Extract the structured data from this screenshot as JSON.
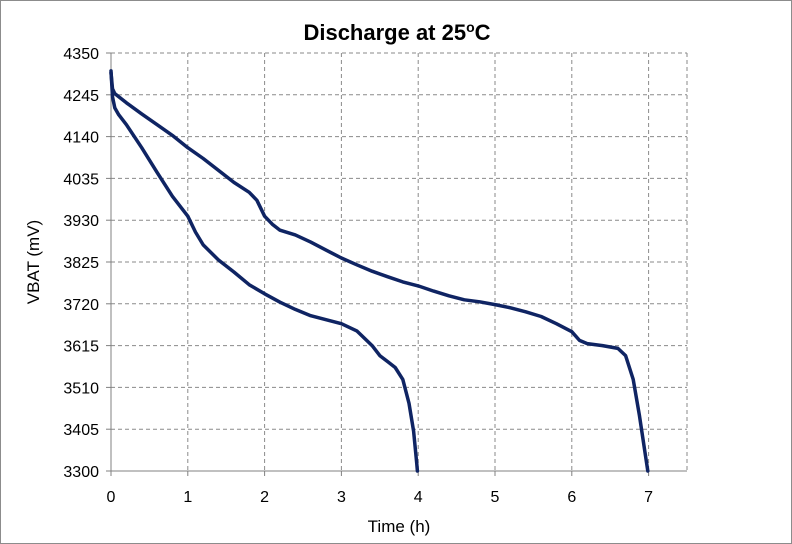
{
  "chart_data": {
    "type": "line",
    "title": "Discharge at 25",
    "title_superscript": "o",
    "title_suffix": "C",
    "xlabel": "Time (h)",
    "ylabel": "VBAT (mV)",
    "xlim": [
      0,
      7.5
    ],
    "ylim": [
      3300,
      4350
    ],
    "x_ticks": [
      0,
      1,
      2,
      3,
      4,
      5,
      6,
      7
    ],
    "y_ticks": [
      3300,
      3405,
      3510,
      3615,
      3720,
      3825,
      3930,
      4035,
      4140,
      4245,
      4350
    ],
    "grid": true,
    "legend": false,
    "series_color": "#0f2463",
    "series": [
      {
        "points": [
          [
            0.0,
            4305
          ],
          [
            0.02,
            4240
          ],
          [
            0.05,
            4212
          ],
          [
            0.1,
            4195
          ],
          [
            0.2,
            4170
          ],
          [
            0.4,
            4112
          ],
          [
            0.6,
            4050
          ],
          [
            0.8,
            3990
          ],
          [
            1.0,
            3940
          ],
          [
            1.1,
            3900
          ],
          [
            1.2,
            3868
          ],
          [
            1.4,
            3830
          ],
          [
            1.6,
            3800
          ],
          [
            1.8,
            3768
          ],
          [
            2.0,
            3745
          ],
          [
            2.2,
            3724
          ],
          [
            2.4,
            3706
          ],
          [
            2.6,
            3690
          ],
          [
            2.8,
            3680
          ],
          [
            3.0,
            3670
          ],
          [
            3.2,
            3652
          ],
          [
            3.4,
            3615
          ],
          [
            3.5,
            3590
          ],
          [
            3.6,
            3575
          ],
          [
            3.7,
            3560
          ],
          [
            3.8,
            3530
          ],
          [
            3.88,
            3470
          ],
          [
            3.94,
            3400
          ],
          [
            3.98,
            3320
          ],
          [
            3.99,
            3300
          ]
        ]
      },
      {
        "points": [
          [
            0.0,
            4300
          ],
          [
            0.02,
            4260
          ],
          [
            0.05,
            4248
          ],
          [
            0.2,
            4225
          ],
          [
            0.4,
            4197
          ],
          [
            0.6,
            4170
          ],
          [
            0.8,
            4143
          ],
          [
            1.0,
            4112
          ],
          [
            1.2,
            4085
          ],
          [
            1.4,
            4055
          ],
          [
            1.6,
            4025
          ],
          [
            1.8,
            4000
          ],
          [
            1.9,
            3980
          ],
          [
            2.0,
            3940
          ],
          [
            2.1,
            3920
          ],
          [
            2.2,
            3905
          ],
          [
            2.4,
            3893
          ],
          [
            2.6,
            3875
          ],
          [
            2.8,
            3855
          ],
          [
            3.0,
            3835
          ],
          [
            3.2,
            3818
          ],
          [
            3.4,
            3802
          ],
          [
            3.6,
            3788
          ],
          [
            3.8,
            3775
          ],
          [
            4.0,
            3765
          ],
          [
            4.2,
            3752
          ],
          [
            4.4,
            3740
          ],
          [
            4.6,
            3730
          ],
          [
            4.8,
            3725
          ],
          [
            5.0,
            3718
          ],
          [
            5.2,
            3710
          ],
          [
            5.4,
            3700
          ],
          [
            5.6,
            3688
          ],
          [
            5.8,
            3670
          ],
          [
            6.0,
            3650
          ],
          [
            6.1,
            3628
          ],
          [
            6.2,
            3620
          ],
          [
            6.4,
            3615
          ],
          [
            6.6,
            3608
          ],
          [
            6.7,
            3590
          ],
          [
            6.8,
            3530
          ],
          [
            6.88,
            3440
          ],
          [
            6.95,
            3350
          ],
          [
            6.99,
            3300
          ]
        ]
      }
    ]
  }
}
